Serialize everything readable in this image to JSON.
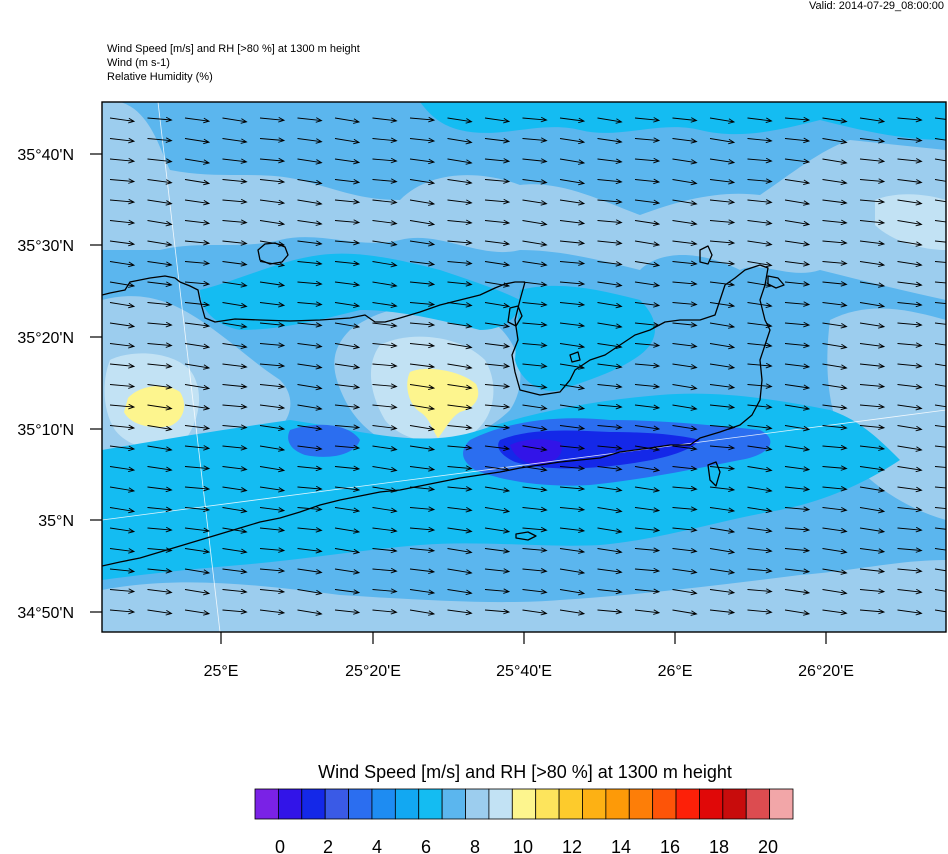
{
  "header": {
    "valid": "Valid: 2014-07-29_08:00:00",
    "title_lines": [
      "Wind Speed [m/s] and RH [>80 %] at 1300 m height",
      "Wind   (m s-1)",
      "Relative Humidity   (%)"
    ]
  },
  "map": {
    "lat_labels": [
      "35°40'N",
      "35°30'N",
      "35°20'N",
      "35°10'N",
      "35°N",
      "34°50'N"
    ],
    "lon_labels": [
      "25°E",
      "25°20'E",
      "25°40'E",
      "26°E",
      "26°20'E"
    ],
    "arrow_icon": "wind-arrow-icon",
    "colors": {
      "frame": "#000000",
      "coast": "#000000",
      "grid": "#ffffff"
    }
  },
  "colorbar": {
    "title": "Wind Speed [m/s] and RH [>80 %] at 1300 m height",
    "colors": [
      "#7a22e6",
      "#3214e8",
      "#1428e8",
      "#3a5ae6",
      "#2b6ef0",
      "#1e8cf2",
      "#12a8f2",
      "#14bcf2",
      "#5bb6ee",
      "#9ccdee",
      "#c2e2f4",
      "#fdf58e",
      "#fde45c",
      "#fdcb2c",
      "#fdb114",
      "#fd9a08",
      "#fd7e08",
      "#fd5408",
      "#fd2008",
      "#e00808",
      "#c80c0c",
      "#dc4c50",
      "#f2a6a8"
    ],
    "tick_labels": [
      "0",
      "2",
      "4",
      "6",
      "8",
      "10",
      "12",
      "14",
      "16",
      "18",
      "20"
    ]
  }
}
